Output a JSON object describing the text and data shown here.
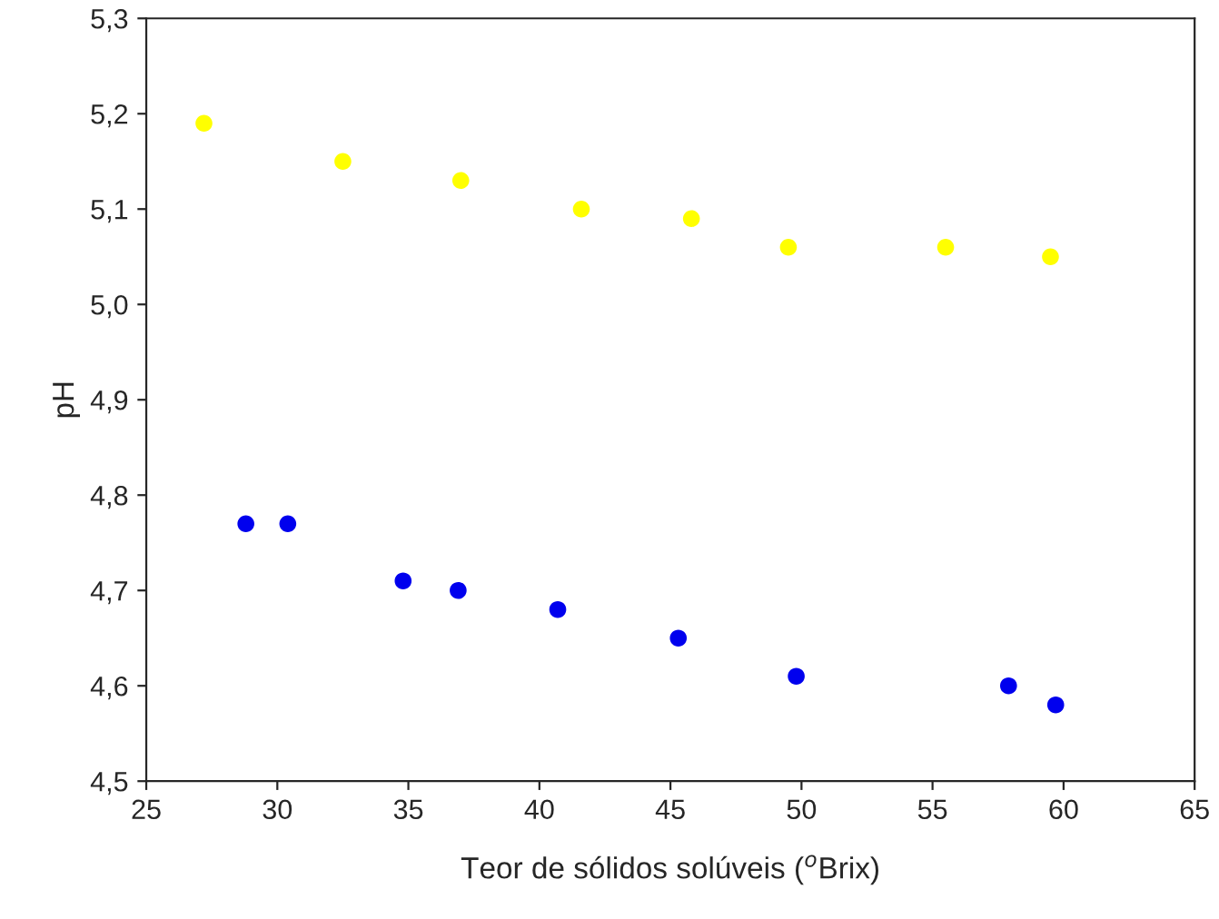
{
  "chart_data": {
    "type": "scatter",
    "xlabel": "Teor de sólidos solúveis ($^{o}$Brix)",
    "ylabel": "pH",
    "series": [
      {
        "color": "#ffff00",
        "x": [
          27.2,
          32.5,
          37.0,
          41.6,
          45.8,
          49.5,
          55.5,
          59.5
        ],
        "values": [
          5.19,
          5.15,
          5.13,
          5.1,
          5.09,
          5.06,
          5.06,
          5.05
        ]
      },
      {
        "color": "#0000ee",
        "x": [
          28.8,
          30.4,
          34.8,
          36.9,
          40.7,
          45.3,
          49.8,
          57.9,
          59.7
        ],
        "values": [
          4.77,
          4.77,
          4.71,
          4.7,
          4.68,
          4.65,
          4.61,
          4.6,
          4.58
        ]
      }
    ],
    "xlim": [
      25,
      65
    ],
    "xticks": [
      25,
      30,
      35,
      40,
      45,
      50,
      55,
      60,
      65
    ],
    "ylim": [
      4.5,
      5.3
    ],
    "yticks": [
      {
        "value": 4.5,
        "label": "4,5"
      },
      {
        "value": 4.6,
        "label": "4,6"
      },
      {
        "value": 4.7,
        "label": "4,7"
      },
      {
        "value": 4.8,
        "label": "4,8"
      },
      {
        "value": 4.9,
        "label": "4,9"
      },
      {
        "value": 5.0,
        "label": "5,0"
      },
      {
        "value": 5.1,
        "label": "5,1"
      },
      {
        "value": 5.2,
        "label": "5,2"
      },
      {
        "value": 5.3,
        "label": "5,3"
      }
    ],
    "grid": false,
    "legend": false,
    "marker": "circle"
  }
}
